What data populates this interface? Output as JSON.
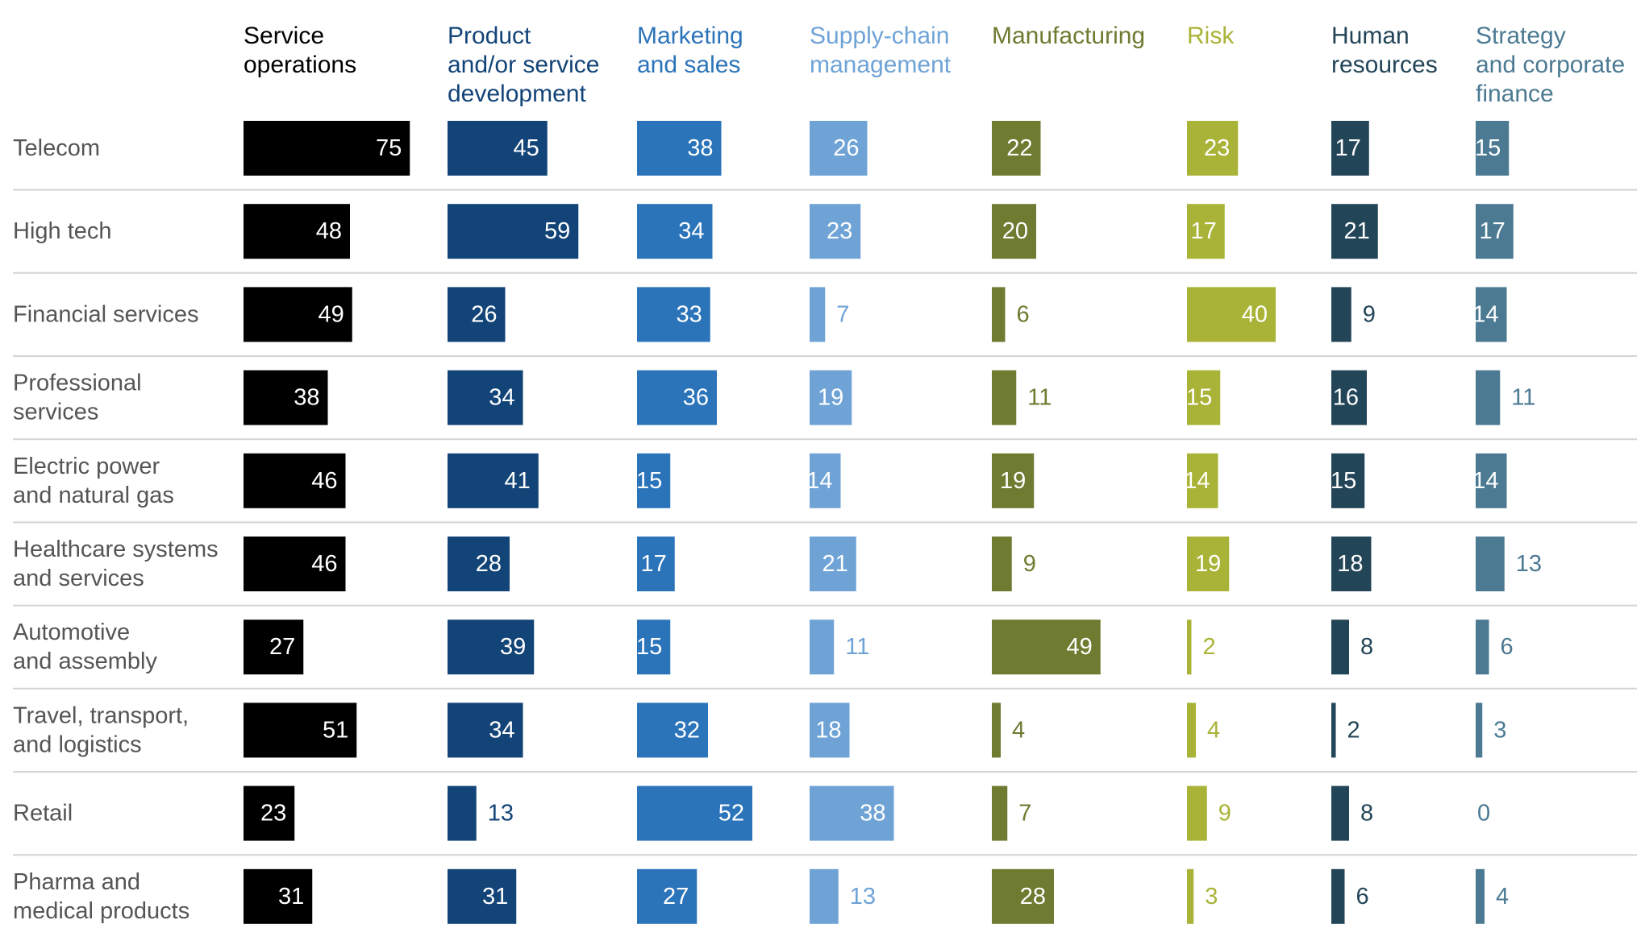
{
  "chart_data": {
    "type": "bar",
    "layout": "small-multiples",
    "categories": [
      [
        "Telecom"
      ],
      [
        "High tech"
      ],
      [
        "Financial services"
      ],
      [
        "Professional",
        "services"
      ],
      [
        "Electric power",
        "and natural gas"
      ],
      [
        "Healthcare systems",
        "and services"
      ],
      [
        "Automotive",
        "and assembly"
      ],
      [
        "Travel, transport,",
        "and logistics"
      ],
      [
        "Retail"
      ],
      [
        "Pharma and",
        "medical products"
      ]
    ],
    "series": [
      {
        "name": [
          "Service",
          "operations"
        ],
        "color": "#000000",
        "values": [
          75,
          48,
          49,
          38,
          46,
          46,
          27,
          51,
          23,
          31
        ]
      },
      {
        "name": [
          "Product",
          "and/or service",
          "development"
        ],
        "color": "#134478",
        "values": [
          45,
          59,
          26,
          34,
          41,
          28,
          39,
          34,
          13,
          31
        ]
      },
      {
        "name": [
          "Marketing",
          "and sales"
        ],
        "color": "#2b74ba",
        "values": [
          38,
          34,
          33,
          36,
          15,
          17,
          15,
          32,
          52,
          27
        ]
      },
      {
        "name": [
          "Supply-chain",
          "management"
        ],
        "color": "#6fa3d6",
        "values": [
          26,
          23,
          7,
          19,
          14,
          21,
          11,
          18,
          38,
          13
        ]
      },
      {
        "name": [
          "Manufacturing"
        ],
        "color": "#6e7b31",
        "values": [
          22,
          20,
          6,
          11,
          19,
          9,
          49,
          4,
          7,
          28
        ]
      },
      {
        "name": [
          "Risk"
        ],
        "color": "#a9b337",
        "values": [
          23,
          17,
          40,
          15,
          14,
          19,
          2,
          4,
          9,
          3
        ]
      },
      {
        "name": [
          "Human",
          "resources"
        ],
        "color": "#234558",
        "values": [
          17,
          21,
          9,
          16,
          15,
          18,
          8,
          2,
          8,
          6
        ]
      },
      {
        "name": [
          "Strategy",
          "and corporate",
          "finance"
        ],
        "color": "#4b7a92",
        "values": [
          15,
          17,
          14,
          11,
          14,
          13,
          6,
          3,
          0,
          4
        ]
      }
    ],
    "legend": "column headers",
    "grid": false
  }
}
